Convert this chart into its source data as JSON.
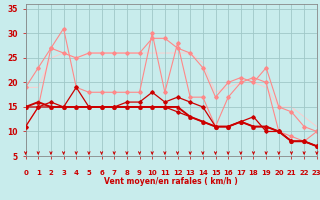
{
  "xlabel": "Vent moyen/en rafales ( km/h )",
  "xlim": [
    0,
    23
  ],
  "ylim": [
    5,
    36
  ],
  "yticks": [
    5,
    10,
    15,
    20,
    25,
    30,
    35
  ],
  "xticks": [
    0,
    1,
    2,
    3,
    4,
    5,
    6,
    7,
    8,
    9,
    10,
    11,
    12,
    13,
    14,
    15,
    16,
    17,
    18,
    19,
    20,
    21,
    22,
    23
  ],
  "bg_color": "#c8ecec",
  "grid_color": "#a0c8c8",
  "series": [
    {
      "y": [
        11,
        15,
        27,
        31,
        19,
        18,
        18,
        18,
        18,
        18,
        30,
        18,
        28,
        17,
        17,
        11,
        17,
        20,
        21,
        20,
        10,
        9,
        8,
        10
      ],
      "color": "#ff8888",
      "lw": 0.8,
      "marker": "D",
      "ms": 1.8,
      "zorder": 2
    },
    {
      "y": [
        19,
        23,
        27,
        26,
        25,
        26,
        26,
        26,
        26,
        26,
        29,
        29,
        27,
        26,
        23,
        17,
        20,
        21,
        20,
        23,
        15,
        14,
        11,
        10
      ],
      "color": "#ff8888",
      "lw": 0.8,
      "marker": "D",
      "ms": 1.8,
      "zorder": 2
    },
    {
      "y": [
        19,
        19,
        25,
        26,
        25,
        26,
        26,
        26,
        26,
        26,
        26,
        26,
        26,
        26,
        24,
        18,
        19,
        20,
        20,
        19,
        15,
        15,
        13,
        11
      ],
      "color": "#ffcccc",
      "lw": 0.7,
      "marker": null,
      "ms": 0,
      "zorder": 1
    },
    {
      "y": [
        11,
        15,
        16,
        15,
        19,
        15,
        15,
        15,
        16,
        16,
        18,
        16,
        17,
        16,
        15,
        11,
        11,
        12,
        13,
        10,
        10,
        8,
        8,
        7
      ],
      "color": "#cc0000",
      "lw": 0.9,
      "marker": "D",
      "ms": 1.8,
      "zorder": 4
    },
    {
      "y": [
        15,
        16,
        15,
        15,
        15,
        15,
        15,
        15,
        15,
        15,
        15,
        15,
        15,
        13,
        12,
        11,
        11,
        12,
        11,
        11,
        10,
        8,
        8,
        7
      ],
      "color": "#cc0000",
      "lw": 1.4,
      "marker": "^",
      "ms": 2.2,
      "zorder": 5
    },
    {
      "y": [
        15,
        15,
        15,
        15,
        15,
        15,
        15,
        15,
        15,
        15,
        15,
        15,
        14,
        13,
        12,
        11,
        11,
        12,
        11,
        11,
        10,
        8,
        8,
        7
      ],
      "color": "#cc0000",
      "lw": 0.9,
      "marker": "D",
      "ms": 1.8,
      "zorder": 4
    }
  ],
  "wind_arrow_color": "#cc0000"
}
